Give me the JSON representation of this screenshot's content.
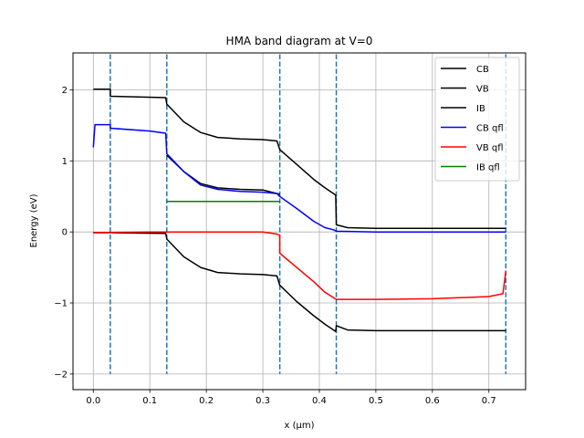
{
  "chart_data": {
    "type": "line",
    "title": "HMA band diagram at V=0",
    "xlabel": "x (μm)",
    "ylabel": "Energy (eV)",
    "xlim": [
      -0.036,
      0.765
    ],
    "ylim": [
      -2.22,
      2.52
    ],
    "xticks": [
      0.0,
      0.1,
      0.2,
      0.3,
      0.4,
      0.5,
      0.6,
      0.7
    ],
    "xtick_labels": [
      "0.0",
      "0.1",
      "0.2",
      "0.3",
      "0.4",
      "0.5",
      "0.6",
      "0.7"
    ],
    "yticks": [
      -2,
      -1,
      0,
      1,
      2
    ],
    "ytick_labels": [
      "−2",
      "−1",
      "0",
      "1",
      "2"
    ],
    "grid": true,
    "legend_position": "top-right",
    "vlines": {
      "color": "#1f77b4",
      "style": "dashed",
      "x": [
        0.03,
        0.13,
        0.33,
        0.43,
        0.73
      ],
      "ymin": -2.0,
      "ymax": 2.5
    },
    "series": [
      {
        "name": "CB",
        "color": "#000000",
        "x": [
          0.0,
          0.03,
          0.03,
          0.128,
          0.13,
          0.16,
          0.19,
          0.22,
          0.26,
          0.3,
          0.325,
          0.33,
          0.36,
          0.39,
          0.41,
          0.429,
          0.43,
          0.45,
          0.5,
          0.6,
          0.73
        ],
        "y": [
          2.01,
          2.01,
          1.91,
          1.89,
          1.8,
          1.55,
          1.4,
          1.33,
          1.31,
          1.3,
          1.28,
          1.16,
          0.95,
          0.74,
          0.62,
          0.52,
          0.1,
          0.06,
          0.05,
          0.05,
          0.05
        ]
      },
      {
        "name": "VB",
        "color": "#000000",
        "x": [
          0.0,
          0.03,
          0.03,
          0.128,
          0.13,
          0.16,
          0.19,
          0.22,
          0.26,
          0.3,
          0.325,
          0.33,
          0.36,
          0.39,
          0.41,
          0.429,
          0.43,
          0.45,
          0.5,
          0.6,
          0.73
        ],
        "y": [
          -0.01,
          -0.01,
          -0.01,
          -0.02,
          -0.1,
          -0.35,
          -0.5,
          -0.57,
          -0.59,
          -0.6,
          -0.62,
          -0.75,
          -0.98,
          -1.18,
          -1.3,
          -1.4,
          -1.32,
          -1.38,
          -1.39,
          -1.39,
          -1.39
        ]
      },
      {
        "name": "IB",
        "color": "#000000",
        "x": [
          0.13,
          0.16,
          0.19,
          0.22,
          0.26,
          0.3,
          0.33
        ],
        "y": [
          1.08,
          0.85,
          0.68,
          0.62,
          0.6,
          0.59,
          0.53
        ]
      },
      {
        "name": "CB qfl",
        "color": "#0000ff",
        "x": [
          0.0,
          0.003,
          0.03,
          0.03,
          0.1,
          0.128,
          0.13,
          0.16,
          0.19,
          0.22,
          0.26,
          0.3,
          0.325,
          0.33,
          0.36,
          0.39,
          0.41,
          0.425,
          0.43,
          0.5,
          0.73
        ],
        "y": [
          1.19,
          1.51,
          1.51,
          1.46,
          1.42,
          1.39,
          1.1,
          0.85,
          0.66,
          0.6,
          0.57,
          0.56,
          0.54,
          0.5,
          0.33,
          0.15,
          0.06,
          0.03,
          0.01,
          0.0,
          0.0
        ]
      },
      {
        "name": "VB qfl",
        "color": "#ff0000",
        "x": [
          0.0,
          0.1,
          0.13,
          0.2,
          0.3,
          0.325,
          0.33,
          0.33,
          0.36,
          0.39,
          0.41,
          0.43,
          0.5,
          0.6,
          0.7,
          0.725,
          0.73
        ],
        "y": [
          -0.01,
          0.0,
          0.0,
          0.0,
          0.0,
          -0.03,
          -0.05,
          -0.3,
          -0.5,
          -0.7,
          -0.85,
          -0.95,
          -0.95,
          -0.94,
          -0.91,
          -0.87,
          -0.55
        ]
      },
      {
        "name": "IB qfl",
        "color": "#008000",
        "x": [
          0.13,
          0.33
        ],
        "y": [
          0.43,
          0.43
        ]
      }
    ]
  }
}
